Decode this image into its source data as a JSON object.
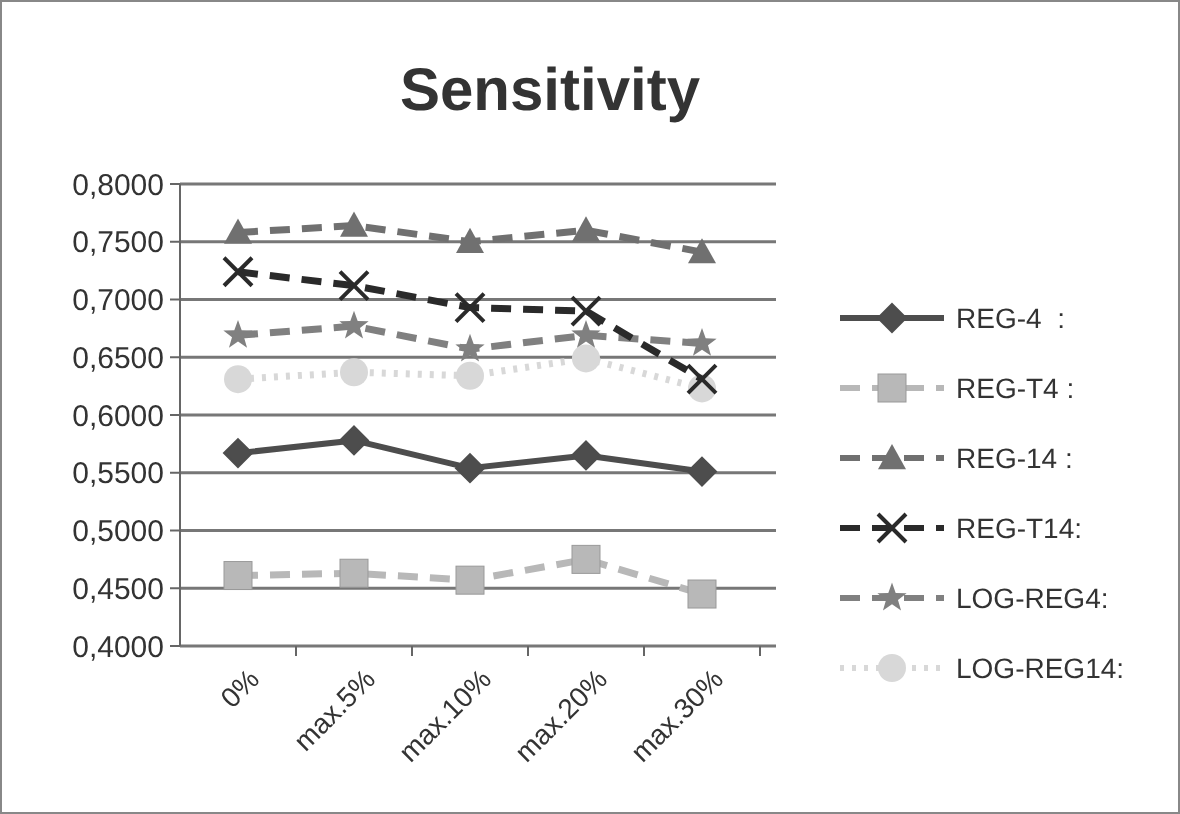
{
  "chart_data": {
    "type": "line",
    "title": "Sensitivity",
    "categories": [
      "0%",
      "max.5%",
      "max.10%",
      "max.20%",
      "max.30%"
    ],
    "series": [
      {
        "name": "REG-4  :",
        "color": "#4d4d4d",
        "marker": "diamond",
        "line_style": "solid",
        "values": [
          0.567,
          0.578,
          0.554,
          0.565,
          0.551
        ]
      },
      {
        "name": "REG-T4 :",
        "color": "#b8b8b8",
        "marker": "square",
        "line_style": "dashed",
        "values": [
          0.461,
          0.463,
          0.457,
          0.475,
          0.445
        ]
      },
      {
        "name": "REG-14 :",
        "color": "#707070",
        "marker": "triangle",
        "line_style": "dashed",
        "values": [
          0.758,
          0.764,
          0.75,
          0.76,
          0.741
        ]
      },
      {
        "name": "REG-T14:",
        "color": "#2a2a2a",
        "marker": "cross",
        "line_style": "dashed",
        "values": [
          0.724,
          0.712,
          0.693,
          0.69,
          0.631
        ]
      },
      {
        "name": "LOG-REG4:",
        "color": "#808080",
        "marker": "star",
        "line_style": "dashed",
        "values": [
          0.669,
          0.677,
          0.657,
          0.669,
          0.662
        ]
      },
      {
        "name": "LOG-REG14:",
        "color": "#d8d8d8",
        "marker": "circle",
        "line_style": "dotted",
        "values": [
          0.631,
          0.637,
          0.634,
          0.649,
          0.623
        ]
      }
    ],
    "ylim": [
      0.4,
      0.8
    ],
    "yticks": [
      {
        "value": 0.4,
        "label": "0,4000"
      },
      {
        "value": 0.45,
        "label": "0,4500"
      },
      {
        "value": 0.5,
        "label": "0,5000"
      },
      {
        "value": 0.55,
        "label": "0,5500"
      },
      {
        "value": 0.6,
        "label": "0,6000"
      },
      {
        "value": 0.65,
        "label": "0,6500"
      },
      {
        "value": 0.7,
        "label": "0,7000"
      },
      {
        "value": 0.75,
        "label": "0,7500"
      },
      {
        "value": 0.8,
        "label": "0,8000"
      }
    ],
    "grid": "y",
    "legend": "right"
  }
}
